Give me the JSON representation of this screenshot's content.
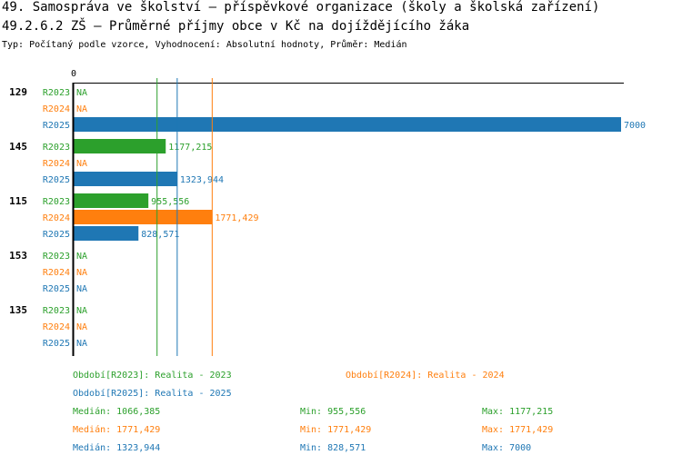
{
  "header": {
    "title": "49. Samospráva ve školství – příspěvkové organizace (školy a školská zařízení)",
    "subtitle": "49.2.6.2 ZŠ – Průměrné příjmy obce v Kč na dojíždějícího žáka",
    "info": "Typ: Počítaný podle vzorce, Vyhodnocení: Absolutní hodnoty, Průměr: Medián"
  },
  "colors": {
    "R2023": "#2ca02c",
    "R2024": "#ff7f0e",
    "R2025": "#1f77b4"
  },
  "chart_data": {
    "type": "bar",
    "orientation": "horizontal",
    "axis_zero_label": "0",
    "xlim": [
      0,
      7000
    ],
    "series_labels": [
      "R2023",
      "R2024",
      "R2025"
    ],
    "groups": [
      {
        "name": "129",
        "values": [
          null,
          null,
          7000
        ],
        "labels": [
          "NA",
          "NA",
          "7000"
        ]
      },
      {
        "name": "145",
        "values": [
          1177.215,
          null,
          1323.944
        ],
        "labels": [
          "1177,215",
          "NA",
          "1323,944"
        ]
      },
      {
        "name": "115",
        "values": [
          955.556,
          1771.429,
          828.571
        ],
        "labels": [
          "955,556",
          "1771,429",
          "828,571"
        ]
      },
      {
        "name": "153",
        "values": [
          null,
          null,
          null
        ],
        "labels": [
          "NA",
          "NA",
          "NA"
        ]
      },
      {
        "name": "135",
        "values": [
          null,
          null,
          null
        ],
        "labels": [
          "NA",
          "NA",
          "NA"
        ]
      }
    ],
    "median_lines": [
      1066.385,
      1771.429,
      1323.944
    ]
  },
  "legend": {
    "r2023": "Období[R2023]: Realita - 2023",
    "r2024": "Období[R2024]: Realita - 2024",
    "r2025": "Období[R2025]: Realita - 2025"
  },
  "stats": {
    "r2023": {
      "median": "Medián: 1066,385",
      "min": "Min: 955,556",
      "max": "Max: 1177,215"
    },
    "r2024": {
      "median": "Medián: 1771,429",
      "min": "Min: 1771,429",
      "max": "Max: 1771,429"
    },
    "r2025": {
      "median": "Medián: 1323,944",
      "min": "Min: 828,571",
      "max": "Max: 7000"
    }
  }
}
